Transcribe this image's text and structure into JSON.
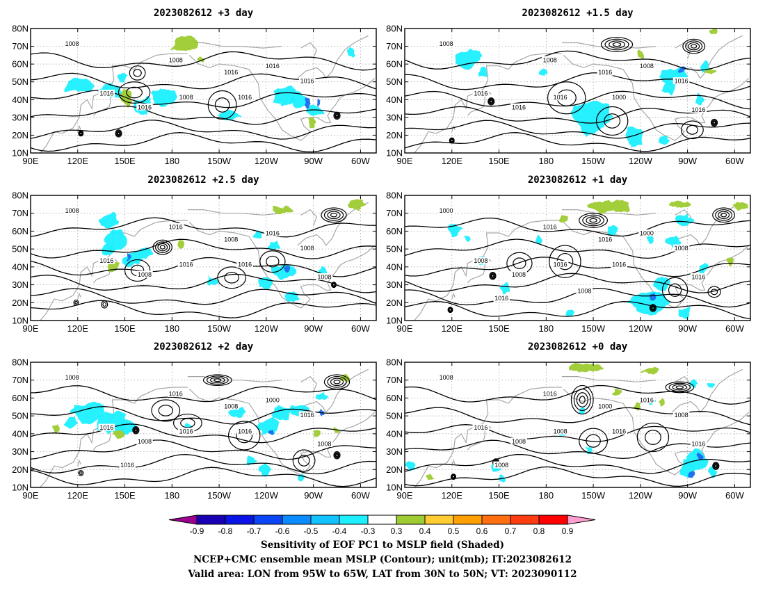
{
  "chart_data": {
    "type": "map",
    "panels": [
      {
        "title": "2023082612 +3 day",
        "contour_labels": [
          "1008",
          "1016",
          "1008",
          "1016",
          "1008",
          "1016",
          "1016",
          "1016",
          "1016"
        ],
        "green_blobs": [
          [
            150,
            41,
            5,
            4
          ],
          [
            189,
            72,
            9,
            5
          ],
          [
            199,
            63,
            2,
            2
          ],
          [
            269,
            27,
            2,
            3
          ]
        ],
        "cyan_blobs": [
          [
            121,
            48,
            9,
            4
          ],
          [
            140,
            45,
            8,
            4
          ],
          [
            148,
            53,
            3,
            3
          ],
          [
            162,
            36,
            6,
            5
          ],
          [
            175,
            42,
            8,
            5
          ],
          [
            216,
            31,
            7,
            3
          ],
          [
            252,
            42,
            8,
            5
          ],
          [
            261,
            40,
            5,
            5
          ],
          [
            271,
            34,
            6,
            3
          ],
          [
            294,
            67,
            2,
            3
          ]
        ],
        "blue_blobs": [
          [
            266,
            38,
            2,
            3
          ],
          [
            273,
            38,
            1,
            2
          ]
        ],
        "highs": [
          [
            156,
            44,
            10,
            6
          ],
          [
            212,
            37,
            9,
            8
          ],
          [
            158,
            55,
            5,
            4
          ]
        ],
        "lows": [
          [
            122,
            21,
            1.5,
            1.5
          ],
          [
            146,
            21,
            2,
            2
          ],
          [
            285,
            31,
            2,
            2
          ]
        ]
      },
      {
        "title": "2023082612 +1.5 day",
        "contour_labels": [
          "1008",
          "1016",
          "1008",
          "1016",
          "1016",
          "1016",
          "1000",
          "1016",
          "1008",
          "1016"
        ],
        "green_blobs": [
          [
            286,
            78,
            3,
            2
          ],
          [
            284,
            56,
            4,
            2
          ],
          [
            240,
            65,
            2,
            2
          ]
        ],
        "cyan_blobs": [
          [
            130,
            63,
            8,
            5
          ],
          [
            140,
            55,
            3,
            3
          ],
          [
            209,
            30,
            12,
            10
          ],
          [
            236,
            19,
            6,
            5
          ],
          [
            262,
            53,
            9,
            5
          ],
          [
            258,
            47,
            4,
            4
          ],
          [
            281,
            58,
            3,
            3
          ],
          [
            255,
            17,
            4,
            3
          ],
          [
            278,
            40,
            3,
            3
          ],
          [
            178,
            55,
            2,
            2
          ]
        ],
        "blue_blobs": [
          [
            267,
            57,
            2,
            2
          ]
        ],
        "highs": [
          [
            193,
            41,
            12,
            9
          ],
          [
            222,
            28,
            10,
            8
          ],
          [
            273,
            23,
            7,
            5
          ]
        ],
        "lows": [
          [
            274,
            70,
            7,
            4
          ],
          [
            225,
            71,
            10,
            4
          ],
          [
            145,
            39,
            2,
            2
          ],
          [
            287,
            27,
            2,
            2
          ],
          [
            120,
            17,
            1.5,
            1.5
          ]
        ]
      },
      {
        "title": "2023082612 +2.5 day",
        "contour_labels": [
          "1008",
          "1016",
          "1016",
          "1008",
          "1016",
          "1008",
          "1016",
          "1008",
          "1016",
          "1008"
        ],
        "green_blobs": [
          [
            143,
            40,
            4,
            3
          ],
          [
            250,
            72,
            6,
            2
          ],
          [
            297,
            75,
            5,
            3
          ],
          [
            186,
            53,
            2,
            2
          ]
        ],
        "cyan_blobs": [
          [
            141,
            66,
            6,
            4
          ],
          [
            145,
            55,
            8,
            6
          ],
          [
            139,
            49,
            4,
            3
          ],
          [
            154,
            44,
            7,
            4
          ],
          [
            163,
            48,
            5,
            3
          ],
          [
            235,
            58,
            3,
            2
          ],
          [
            245,
            52,
            4,
            3
          ],
          [
            251,
            37,
            8,
            4
          ],
          [
            240,
            31,
            4,
            3
          ],
          [
            256,
            23,
            4,
            3
          ],
          [
            276,
            37,
            3,
            3
          ],
          [
            205,
            32,
            3,
            3
          ]
        ],
        "blue_blobs": [
          [
            152,
            46,
            2,
            2
          ],
          [
            253,
            39,
            2,
            2
          ]
        ],
        "highs": [
          [
            218,
            34,
            9,
            6
          ],
          [
            244,
            43,
            8,
            6
          ],
          [
            158,
            38,
            8,
            6
          ],
          [
            119,
            20,
            1.5,
            1.5
          ],
          [
            137,
            19,
            2,
            2
          ]
        ],
        "lows": [
          [
            283,
            69,
            8,
            4
          ],
          [
            174,
            51,
            6,
            4
          ],
          [
            283,
            30,
            1.5,
            1.5
          ]
        ]
      },
      {
        "title": "2023082612 +1 day",
        "contour_labels": [
          "1000",
          "1008",
          "1016",
          "1016",
          "1016",
          "1008",
          "1016",
          "1008",
          "1000",
          "1016",
          "1016",
          "1008"
        ],
        "green_blobs": [
          [
            220,
            74,
            13,
            3
          ],
          [
            265,
            75,
            6,
            2
          ],
          [
            304,
            74,
            5,
            2
          ],
          [
            191,
            67,
            2,
            2
          ],
          [
            297,
            43,
            2,
            3
          ]
        ],
        "cyan_blobs": [
          [
            121,
            61,
            4,
            3
          ],
          [
            130,
            56,
            2,
            2
          ],
          [
            175,
            55,
            2,
            2
          ],
          [
            222,
            60,
            3,
            3
          ],
          [
            246,
            56,
            2,
            2
          ],
          [
            261,
            54,
            5,
            3
          ],
          [
            268,
            66,
            5,
            3
          ],
          [
            245,
            20,
            12,
            7
          ],
          [
            254,
            30,
            5,
            4
          ],
          [
            280,
            39,
            3,
            3
          ],
          [
            268,
            14,
            4,
            3
          ],
          [
            139,
            44,
            3,
            3
          ],
          [
            154,
            28,
            3,
            3
          ],
          [
            195,
            14,
            3,
            2
          ]
        ],
        "blue_blobs": [
          [
            248,
            23,
            2,
            2
          ]
        ],
        "highs": [
          [
            163,
            42,
            8,
            6
          ],
          [
            192,
            43,
            10,
            9
          ],
          [
            262,
            27,
            8,
            7
          ],
          [
            287,
            26,
            4,
            3
          ]
        ],
        "lows": [
          [
            293,
            69,
            7,
            4
          ],
          [
            210,
            66,
            9,
            4
          ],
          [
            146,
            35,
            2,
            2
          ],
          [
            119,
            16,
            1.5,
            1.5
          ],
          [
            248,
            17,
            2,
            2
          ]
        ]
      },
      {
        "title": "2023082612 +2 day",
        "contour_labels": [
          "1008",
          "1016",
          "1016",
          "1008",
          "1016",
          "1008",
          "1016",
          "1016",
          "1000",
          "1008",
          "1016"
        ],
        "green_blobs": [
          [
            147,
            40,
            4,
            3
          ],
          [
            106,
            43,
            2,
            2
          ],
          [
            272,
            40,
            2,
            2
          ],
          [
            285,
            42,
            2,
            2
          ],
          [
            290,
            71,
            3,
            2
          ]
        ],
        "cyan_blobs": [
          [
            127,
            52,
            10,
            6
          ],
          [
            142,
            46,
            9,
            6
          ],
          [
            152,
            44,
            6,
            4
          ],
          [
            116,
            46,
            4,
            3
          ],
          [
            190,
            44,
            2,
            2
          ],
          [
            222,
            52,
            5,
            3
          ],
          [
            241,
            44,
            8,
            4
          ],
          [
            250,
            51,
            6,
            4
          ],
          [
            262,
            53,
            6,
            4
          ],
          [
            275,
            61,
            4,
            2
          ],
          [
            239,
            20,
            4,
            3
          ],
          [
            230,
            25,
            3,
            3
          ],
          [
            262,
            16,
            2,
            2
          ]
        ],
        "blue_blobs": [
          [
            275,
            52,
            2,
            2
          ],
          [
            243,
            41,
            2,
            2
          ]
        ],
        "highs": [
          [
            176,
            53,
            9,
            6
          ],
          [
            190,
            46,
            9,
            5
          ],
          [
            226,
            39,
            10,
            8
          ],
          [
            264,
            25,
            7,
            6
          ],
          [
            122,
            18,
            1.5,
            1.5
          ]
        ],
        "lows": [
          [
            285,
            69,
            8,
            4
          ],
          [
            209,
            70,
            9,
            3
          ],
          [
            157,
            42,
            2,
            2
          ],
          [
            285,
            28,
            2,
            2
          ]
        ]
      },
      {
        "title": "2023082612 +0 day",
        "contour_labels": [
          "1008",
          "1016",
          "1016",
          "1000",
          "1008",
          "1008",
          "1016",
          "1008",
          "1016",
          "1016",
          "1008"
        ],
        "green_blobs": [
          [
            205,
            77,
            12,
            2
          ],
          [
            247,
            75,
            5,
            2
          ],
          [
            225,
            63,
            3,
            2
          ],
          [
            253,
            58,
            2,
            2
          ],
          [
            238,
            55,
            2,
            2
          ],
          [
            106,
            16,
            2,
            2
          ],
          [
            148,
            21,
            2,
            2
          ]
        ],
        "cyan_blobs": [
          [
            276,
            25,
            7,
            6
          ],
          [
            270,
            20,
            5,
            5
          ],
          [
            286,
            19,
            3,
            3
          ],
          [
            274,
            68,
            3,
            2
          ],
          [
            285,
            67,
            2,
            2
          ],
          [
            190,
            41,
            3,
            2
          ],
          [
            207,
            31,
            2,
            2
          ],
          [
            203,
            53,
            2,
            2
          ],
          [
            94,
            22,
            3,
            3
          ],
          [
            148,
            22,
            3,
            3
          ],
          [
            152,
            15,
            2,
            2
          ],
          [
            248,
            58,
            2,
            2
          ]
        ],
        "blue_blobs": [
          [
            278,
            27,
            2,
            2
          ],
          [
            273,
            18,
            2,
            2
          ]
        ],
        "highs": [
          [
            248,
            38,
            10,
            8
          ],
          [
            210,
            36,
            9,
            7
          ]
        ],
        "lows": [
          [
            203,
            59,
            7,
            8
          ],
          [
            265,
            66,
            9,
            3
          ],
          [
            288,
            22,
            2,
            2
          ],
          [
            148,
            24,
            2,
            2
          ],
          [
            121,
            16,
            1.5,
            1.5
          ]
        ]
      }
    ],
    "x_ticks": [
      "90E",
      "120E",
      "150E",
      "180",
      "150W",
      "120W",
      "90W",
      "60W"
    ],
    "y_ticks": [
      "10N",
      "20N",
      "30N",
      "40N",
      "50N",
      "60N",
      "70N",
      "80N"
    ],
    "lon_range": [
      90,
      310
    ],
    "lat_range": [
      10,
      80
    ],
    "colorbar": {
      "labels": [
        "-0.9",
        "-0.8",
        "-0.7",
        "-0.6",
        "-0.5",
        "-0.4",
        "-0.3",
        "0.3",
        "0.4",
        "0.5",
        "0.6",
        "0.7",
        "0.8",
        "0.9"
      ],
      "colors": [
        "#9b0090",
        "#1a00b4",
        "#0a14e6",
        "#0a46f5",
        "#0a8cff",
        "#12c3ff",
        "#1ef0ff",
        "#ffffff",
        "#9fcc33",
        "#ffcc33",
        "#ff9f00",
        "#ff6f10",
        "#ff3c10",
        "#ff0000",
        "#ff9fd0"
      ],
      "extend": "both"
    },
    "footer": [
      "Sensitivity of EOF PC1 to MSLP field (Shaded)",
      "NCEP+CMC ensemble mean MSLP (Contour); unit(mb); IT:2023082612",
      "Valid area: LON from 95W to 65W, LAT from 30N to 50N; VT: 2023090112"
    ]
  }
}
